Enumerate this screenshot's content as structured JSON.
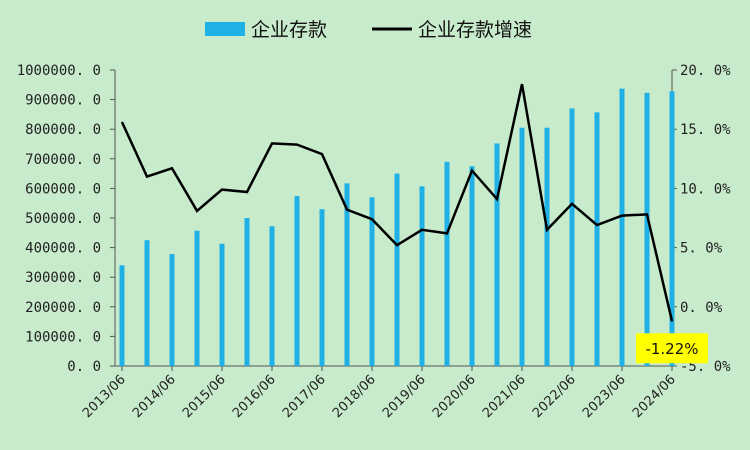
{
  "chart_data": {
    "type": "bar+line",
    "colors": {
      "background": "#c8ebcc",
      "bar": "#1fb0e6",
      "line": "#000000",
      "callout_bg": "#ffff00"
    },
    "legend": {
      "placement": "top-center",
      "bar_label": "企业存款",
      "line_label": "企业存款增速"
    },
    "axes": {
      "left": {
        "ylim": [
          0,
          1000000
        ],
        "step": 100000,
        "tick_labels": [
          "0. 0",
          "100000. 0",
          "200000. 0",
          "300000. 0",
          "400000. 0",
          "500000. 0",
          "600000. 0",
          "700000. 0",
          "800000. 0",
          "900000. 0",
          "1000000. 0"
        ]
      },
      "right": {
        "ylim": [
          -5,
          20
        ],
        "step": 5,
        "tick_labels": [
          "-5. 0%",
          "0. 0%",
          "5. 0%",
          "10. 0%",
          "15. 0%",
          "20. 0%"
        ]
      },
      "x_tick_labels": [
        "2013/06",
        "2014/06",
        "2015/06",
        "2016/06",
        "2017/06",
        "2018/06",
        "2019/06",
        "2020/06",
        "2021/06",
        "2022/06",
        "2023/06",
        "2024/06"
      ]
    },
    "categories": [
      "2013/06",
      "2013/12",
      "2014/06",
      "2014/12",
      "2015/06",
      "2015/12",
      "2016/06",
      "2016/12",
      "2017/06",
      "2017/12",
      "2018/06",
      "2018/12",
      "2019/06",
      "2019/12",
      "2020/06",
      "2020/12",
      "2021/06",
      "2021/12",
      "2022/06",
      "2022/12",
      "2023/06",
      "2023/12",
      "2024/06"
    ],
    "series": [
      {
        "name": "企业存款",
        "type": "bar",
        "axis": "left",
        "values": [
          340000,
          425000,
          378000,
          457000,
          413000,
          500000,
          472000,
          574000,
          530000,
          617000,
          570000,
          650000,
          607000,
          690000,
          675000,
          752000,
          805000,
          805000,
          870000,
          857000,
          937000,
          923000,
          928000
        ]
      },
      {
        "name": "企业存款增速",
        "type": "line",
        "axis": "right",
        "values": [
          15.6,
          11.0,
          11.7,
          8.1,
          9.9,
          9.7,
          13.8,
          13.7,
          12.9,
          8.2,
          7.4,
          5.2,
          6.5,
          6.2,
          11.5,
          9.1,
          18.8,
          6.5,
          8.7,
          6.9,
          7.7,
          7.8,
          -1.22
        ]
      }
    ],
    "annotation": {
      "text": "-1.22%",
      "category": "2024/06"
    }
  }
}
